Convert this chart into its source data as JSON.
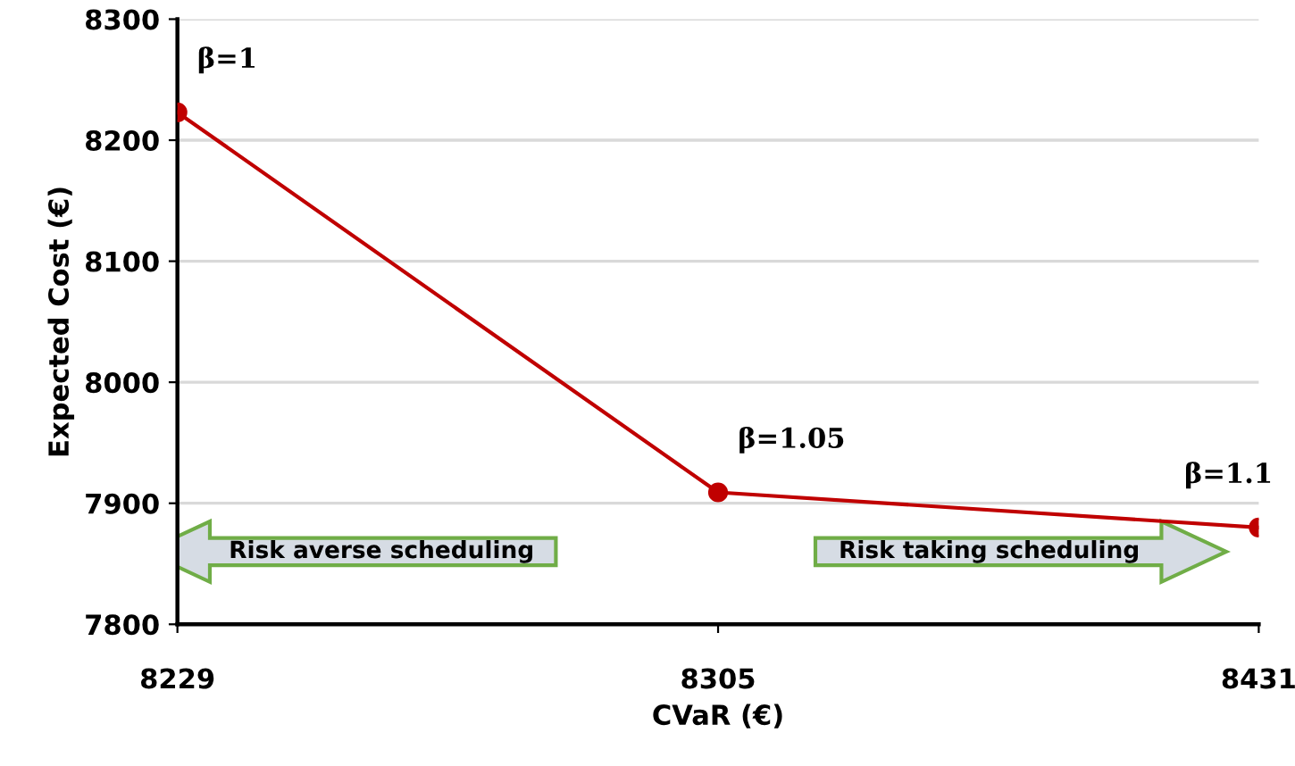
{
  "chart_data": {
    "type": "line",
    "xlabel": "CVaR (€)",
    "ylabel": "Expected Cost (€)",
    "categories": [
      "8229",
      "8305",
      "8431"
    ],
    "series": [
      {
        "color": "#c00000",
        "values": [
          8223,
          7909,
          7880
        ]
      }
    ],
    "ylim": [
      7800,
      8300
    ],
    "yticks": [
      7800,
      7900,
      8000,
      8100,
      8200,
      8300
    ],
    "grid": "y",
    "marker": "circle",
    "line_style": "solid",
    "legend": false,
    "annotations": [
      {
        "text": "β=1",
        "x": "8229",
        "y": 8223
      },
      {
        "text": "β=1.05",
        "x": "8305",
        "y": 7909
      },
      {
        "text": "β=1.1",
        "x": "8431",
        "y": 7880
      },
      "Risk averse scheduling",
      "Risk taking scheduling"
    ]
  }
}
